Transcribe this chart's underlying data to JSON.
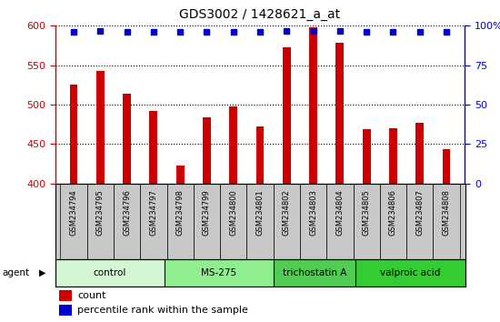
{
  "title": "GDS3002 / 1428621_a_at",
  "samples": [
    "GSM234794",
    "GSM234795",
    "GSM234796",
    "GSM234797",
    "GSM234798",
    "GSM234799",
    "GSM234800",
    "GSM234801",
    "GSM234802",
    "GSM234803",
    "GSM234804",
    "GSM234805",
    "GSM234806",
    "GSM234807",
    "GSM234808"
  ],
  "counts": [
    525,
    543,
    514,
    492,
    423,
    484,
    498,
    472,
    573,
    598,
    578,
    469,
    470,
    477,
    443
  ],
  "percentiles": [
    96,
    97,
    96,
    96,
    96,
    96,
    96,
    96,
    97,
    97,
    97,
    96,
    96,
    96,
    96
  ],
  "bar_color": "#cc0000",
  "dot_color": "#0000cc",
  "ylim_left": [
    400,
    600
  ],
  "ylim_right": [
    0,
    100
  ],
  "yticks_left": [
    400,
    450,
    500,
    550,
    600
  ],
  "yticks_right": [
    0,
    25,
    50,
    75,
    100
  ],
  "groups": [
    {
      "label": "control",
      "start": 0,
      "end": 4,
      "color": "#d4f5d4"
    },
    {
      "label": "MS-275",
      "start": 4,
      "end": 8,
      "color": "#90ee90"
    },
    {
      "label": "trichostatin A",
      "start": 8,
      "end": 11,
      "color": "#50cc50"
    },
    {
      "label": "valproic acid",
      "start": 11,
      "end": 15,
      "color": "#33cc33"
    }
  ],
  "agent_label": "agent",
  "legend_count_label": "count",
  "legend_percentile_label": "percentile rank within the sample",
  "title_fontsize": 10,
  "axis_color_left": "#cc0000",
  "axis_color_right": "#0000cc",
  "tick_bg_color": "#c8c8c8",
  "bar_width": 0.3
}
